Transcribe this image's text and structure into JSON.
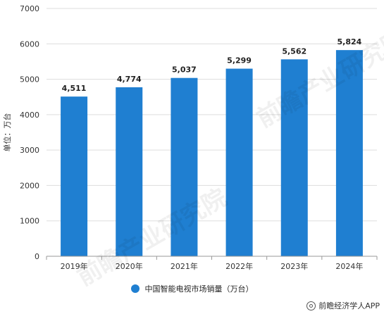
{
  "chart_data": {
    "type": "bar",
    "categories": [
      "2019年",
      "2020年",
      "2021年",
      "2022年",
      "2023年",
      "2024年"
    ],
    "series": [
      {
        "name": "中国智能电视市场销量（万台）",
        "values": [
          4511,
          4774,
          5037,
          5299,
          5562,
          5824
        ]
      }
    ],
    "data_labels": [
      "4,511",
      "4,774",
      "5,037",
      "5,299",
      "5,562",
      "5,824"
    ],
    "ylabel": "单位：万台",
    "ylim": [
      0,
      7000
    ],
    "yticks": [
      0,
      1000,
      2000,
      3000,
      4000,
      5000,
      6000,
      7000
    ],
    "grid": true,
    "legend_position": "bottom",
    "bar_color": "#1f7fd1"
  },
  "source": "前瞻经济学人APP",
  "watermark": "前瞻产业研究院"
}
